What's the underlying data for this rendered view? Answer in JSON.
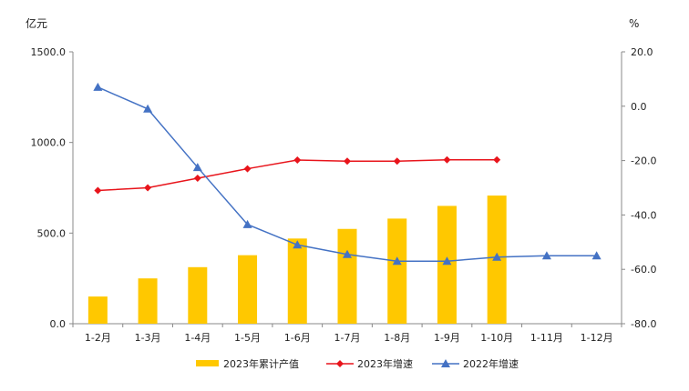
{
  "chart_data": {
    "type": "bar",
    "categories": [
      "1-2月",
      "1-3月",
      "1-4月",
      "1-5月",
      "1-6月",
      "1-7月",
      "1-8月",
      "1-9月",
      "1-10月",
      "1-11月",
      "1-12月"
    ],
    "left_axis": {
      "unit": "亿元",
      "ylim": [
        0,
        1500
      ],
      "ticks": [
        "0.0",
        "500.0",
        "1000.0",
        "1500.0"
      ]
    },
    "right_axis": {
      "unit": "%",
      "ylim": [
        -80,
        20
      ],
      "ticks": [
        "20.0",
        "0.0",
        "-20.0",
        "-40.0",
        "-60.0",
        "-80.0"
      ]
    },
    "series": [
      {
        "name": "2023年累计产值",
        "kind": "bar",
        "axis": "left",
        "color": "#FFC800",
        "values": [
          150,
          250,
          312,
          378,
          470,
          523,
          580,
          650,
          707,
          null,
          null
        ]
      },
      {
        "name": "2023年增速",
        "kind": "line",
        "axis": "right",
        "color": "#E8141B",
        "marker": "diamond",
        "values": [
          -31.0,
          -30.0,
          -26.5,
          -23.0,
          -19.8,
          -20.2,
          -20.2,
          -19.7,
          -19.7,
          null,
          null
        ]
      },
      {
        "name": "2022年增速",
        "kind": "line",
        "axis": "right",
        "color": "#4472C4",
        "marker": "triangle",
        "values": [
          7.0,
          -1.0,
          -22.5,
          -43.5,
          -51.0,
          -54.5,
          -57.0,
          -57.0,
          -55.5,
          -55.0,
          -55.0
        ]
      }
    ],
    "legend_position": "bottom",
    "grid": false
  }
}
